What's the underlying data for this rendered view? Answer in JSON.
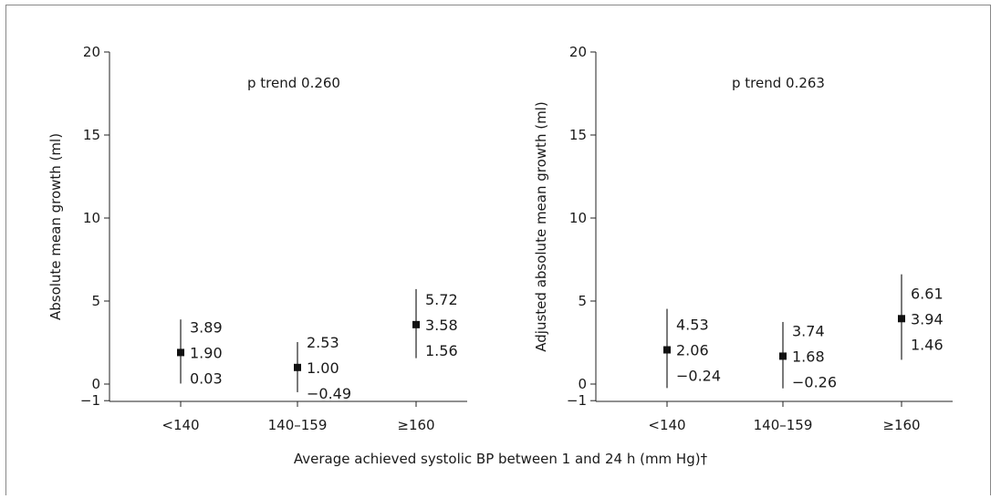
{
  "chart_data": [
    {
      "type": "scatter",
      "ylabel": "Absolute mean growth (ml)",
      "annotation": "p trend 0.260",
      "categories": [
        "<140",
        "140–159",
        "≥160"
      ],
      "yticks": [
        -1,
        0,
        5,
        10,
        15,
        20
      ],
      "yticklabels": [
        "−1",
        "0",
        "5",
        "10",
        "15",
        "20"
      ],
      "ylim": [
        -1,
        20
      ],
      "points": [
        {
          "category": "<140",
          "mean": 1.9,
          "lower": 0.03,
          "upper": 3.89,
          "mean_label": "1.90",
          "lower_label": "0.03",
          "upper_label": "3.89"
        },
        {
          "category": "140–159",
          "mean": 1.0,
          "lower": -0.49,
          "upper": 2.53,
          "mean_label": "1.00",
          "lower_label": "−0.49",
          "upper_label": "2.53"
        },
        {
          "category": "≥160",
          "mean": 3.58,
          "lower": 1.56,
          "upper": 5.72,
          "mean_label": "3.58",
          "lower_label": "1.56",
          "upper_label": "5.72"
        }
      ]
    },
    {
      "type": "scatter",
      "ylabel": "Adjusted absolute mean growth (ml)",
      "annotation": "p trend 0.263",
      "categories": [
        "<140",
        "140–159",
        "≥160"
      ],
      "yticks": [
        -1,
        0,
        5,
        10,
        15,
        20
      ],
      "yticklabels": [
        "−1",
        "0",
        "5",
        "10",
        "15",
        "20"
      ],
      "ylim": [
        -1,
        20
      ],
      "points": [
        {
          "category": "<140",
          "mean": 2.06,
          "lower": -0.24,
          "upper": 4.53,
          "mean_label": "2.06",
          "lower_label": "−0.24",
          "upper_label": "4.53"
        },
        {
          "category": "140–159",
          "mean": 1.68,
          "lower": -0.26,
          "upper": 3.74,
          "mean_label": "1.68",
          "lower_label": "−0.26",
          "upper_label": "3.74"
        },
        {
          "category": "≥160",
          "mean": 3.94,
          "lower": 1.46,
          "upper": 6.61,
          "mean_label": "3.94",
          "lower_label": "1.46",
          "upper_label": "6.61"
        }
      ]
    }
  ],
  "xlabel": "Average achieved systolic BP between 1 and 24 h (mm Hg)†"
}
